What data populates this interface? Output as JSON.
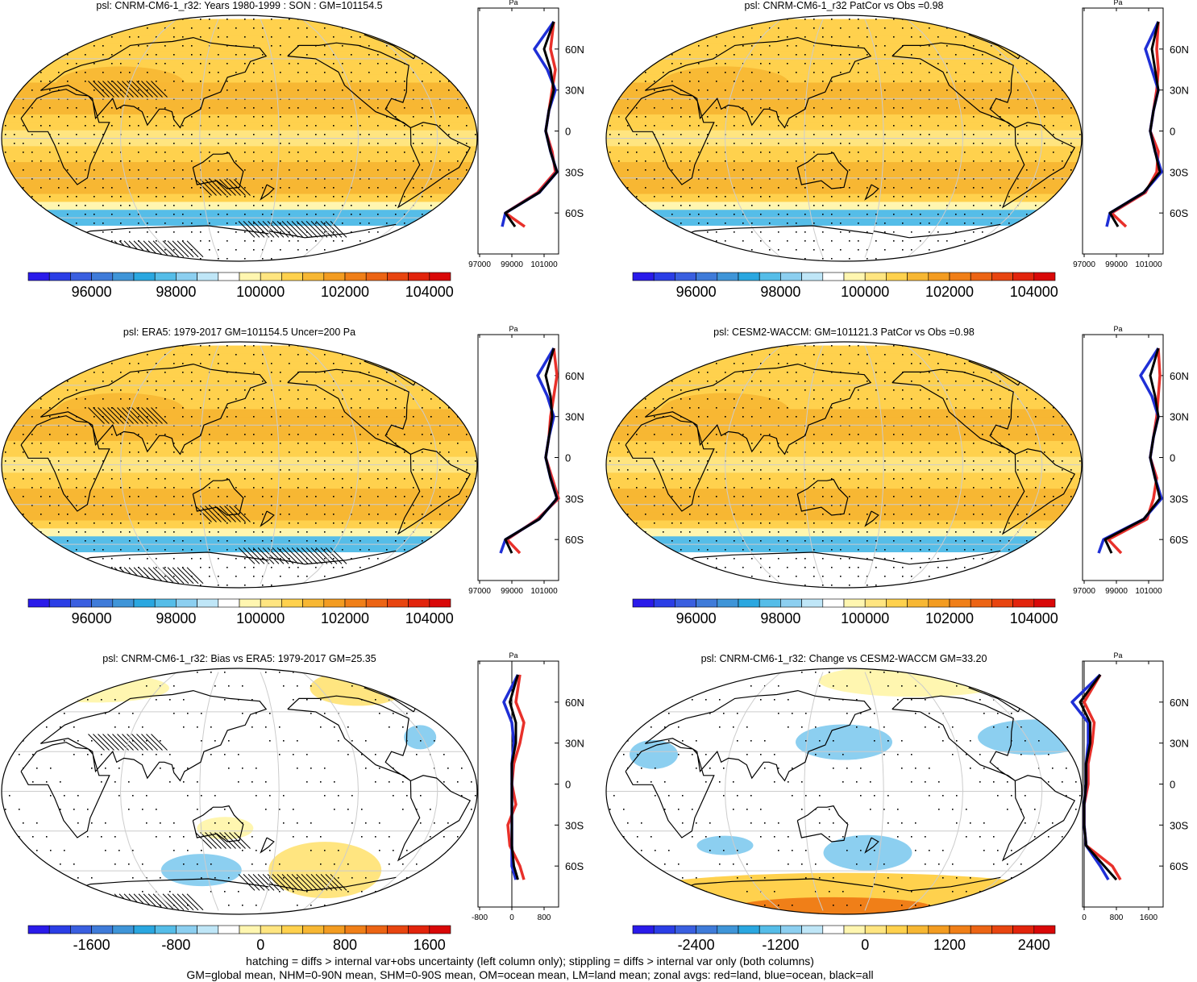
{
  "colors": {
    "scale": [
      "#2a1bea",
      "#2b3ee6",
      "#3a5fe0",
      "#3f7bd9",
      "#3f95d8",
      "#2aa7e0",
      "#55bde8",
      "#8ccff0",
      "#bfe6f7",
      "#ffffff",
      "#fff6b0",
      "#ffe580",
      "#ffd14d",
      "#f7b733",
      "#f39c21",
      "#f07f18",
      "#ec6414",
      "#e84510",
      "#e2240c",
      "#d90808"
    ],
    "land": "#e8302a",
    "ocean": "#1f2fd6",
    "all": "#000000",
    "grid": "#cccccc"
  },
  "panels": [
    {
      "id": "model-mean",
      "title": "psl: CNRM-CM6-1_r32: Years 1980-1999 : SON : GM=101154.5",
      "field": "abs",
      "stipple": "heavy",
      "hatch": true,
      "colorbar_ticks": [
        "96000",
        "98000",
        "100000",
        "102000",
        "104000"
      ],
      "zonal_xticks": [
        "97000",
        "99000",
        "101000"
      ],
      "zonal_unit": "Pa",
      "zonal_ylabels": [
        "60N",
        "30N",
        "0",
        "30S",
        "60S"
      ]
    },
    {
      "id": "model-patcor",
      "title": "psl: CNRM-CM6-1_r32 PatCor vs Obs =0.98",
      "field": "abs",
      "stipple": "heavy",
      "hatch": false,
      "colorbar_ticks": [
        "96000",
        "98000",
        "100000",
        "102000",
        "104000"
      ],
      "zonal_xticks": [
        "97000",
        "99000",
        "101000"
      ],
      "zonal_unit": "Pa",
      "zonal_ylabels": [
        "60N",
        "30N",
        "0",
        "30S",
        "60S"
      ]
    },
    {
      "id": "obs-era5",
      "title": "psl: ERA5: 1979-2017 GM=101154.5 Uncer=200 Pa",
      "field": "abs",
      "stipple": "heavy",
      "hatch": true,
      "colorbar_ticks": [
        "96000",
        "98000",
        "100000",
        "102000",
        "104000"
      ],
      "zonal_xticks": [
        "97000",
        "99000",
        "101000"
      ],
      "zonal_unit": "Pa",
      "zonal_ylabels": [
        "60N",
        "30N",
        "0",
        "30S",
        "60S"
      ]
    },
    {
      "id": "cesm2-waccm",
      "title": "psl: CESM2-WACCM: GM=101121.3 PatCor vs Obs =0.98",
      "field": "abs",
      "stipple": "heavy",
      "hatch": false,
      "colorbar_ticks": [
        "96000",
        "98000",
        "100000",
        "102000",
        "104000"
      ],
      "zonal_xticks": [
        "97000",
        "99000",
        "101000"
      ],
      "zonal_unit": "Pa",
      "zonal_ylabels": [
        "60N",
        "30N",
        "0",
        "30S",
        "60S"
      ]
    },
    {
      "id": "bias-vs-era5",
      "title": "psl: CNRM-CM6-1_r32: Bias vs ERA5: 1979-2017  GM=25.35",
      "field": "bias",
      "stipple": "light",
      "hatch": true,
      "colorbar_ticks": [
        "-1600",
        "-800",
        "0",
        "800",
        "1600"
      ],
      "zonal_xticks": [
        "-800",
        "0",
        "800"
      ],
      "zonal_unit": "Pa",
      "zonal_ylabels": [
        "60N",
        "30N",
        "0",
        "30S",
        "60S"
      ]
    },
    {
      "id": "change-vs-cesm2",
      "title": "psl: CNRM-CM6-1_r32: Change vs CESM2-WACCM GM=33.20",
      "field": "change",
      "stipple": "light",
      "hatch": false,
      "colorbar_ticks": [
        "-2400",
        "-1200",
        "0",
        "1200",
        "2400"
      ],
      "zonal_xticks": [
        "0",
        "800",
        "1600"
      ],
      "zonal_unit": "Pa",
      "zonal_ylabels": [
        "60N",
        "30N",
        "0",
        "30S",
        "60S"
      ]
    }
  ],
  "footer": {
    "line1": "hatching = diffs > internal var+obs uncertainty (left column only); stippling = diffs > internal var only (both columns)",
    "line2": "GM=global mean, NHM=0-90N mean, SHM=0-90S mean, OM=ocean mean, LM=land mean; zonal avgs: red=land, blue=ocean, black=all"
  },
  "chart_data": [
    {
      "type": "heatmap",
      "title": "psl: CNRM-CM6-1_r32: Years 1980-1999 : SON : GM=101154.5",
      "colorbar_ticks": [
        96000,
        98000,
        100000,
        102000,
        104000
      ],
      "zonal_mean": {
        "type": "line",
        "unit": "Pa",
        "y_ticks": [
          "60N",
          "30N",
          "0",
          "30S",
          "60S"
        ],
        "x_ticks": [
          97000,
          99000,
          101000
        ],
        "latitude": [
          80,
          60,
          45,
          30,
          15,
          0,
          -15,
          -30,
          -45,
          -60,
          -70
        ],
        "series": [
          {
            "name": "land",
            "values": [
              101600,
              101400,
              101700,
              101500,
              101300,
              101100,
              101500,
              101700,
              100600,
              98600,
              99800
            ]
          },
          {
            "name": "ocean",
            "values": [
              101600,
              100400,
              101200,
              101700,
              101300,
              101100,
              101400,
              101800,
              100700,
              98600,
              98400
            ]
          },
          {
            "name": "all",
            "values": [
              101600,
              101000,
              101400,
              101600,
              101300,
              101100,
              101400,
              101800,
              100700,
              98600,
              99200
            ]
          }
        ]
      }
    },
    {
      "type": "heatmap",
      "title": "psl: CNRM-CM6-1_r32 PatCor vs Obs =0.98",
      "colorbar_ticks": [
        96000,
        98000,
        100000,
        102000,
        104000
      ],
      "zonal_mean": {
        "type": "line",
        "unit": "Pa",
        "y_ticks": [
          "60N",
          "30N",
          "0",
          "30S",
          "60S"
        ],
        "x_ticks": [
          97000,
          99000,
          101000
        ],
        "latitude": [
          80,
          60,
          45,
          30,
          15,
          0,
          -15,
          -30,
          -45,
          -60,
          -70
        ],
        "series": [
          {
            "name": "land",
            "values": [
              101600,
              101500,
              101600,
              101500,
              101300,
              101100,
              101600,
              101500,
              100800,
              98700,
              99600
            ]
          },
          {
            "name": "ocean",
            "values": [
              101600,
              100800,
              101200,
              101600,
              101300,
              101100,
              101400,
              101800,
              100700,
              98600,
              98400
            ]
          },
          {
            "name": "all",
            "values": [
              101600,
              101200,
              101400,
              101600,
              101300,
              101100,
              101400,
              101700,
              100700,
              98600,
              99100
            ]
          }
        ]
      }
    },
    {
      "type": "heatmap",
      "title": "psl: ERA5: 1979-2017 GM=101154.5 Uncer=200 Pa",
      "colorbar_ticks": [
        96000,
        98000,
        100000,
        102000,
        104000
      ],
      "zonal_mean": {
        "type": "line",
        "unit": "Pa",
        "y_ticks": [
          "60N",
          "30N",
          "0",
          "30S",
          "60S"
        ],
        "x_ticks": [
          97000,
          99000,
          101000
        ],
        "latitude": [
          80,
          60,
          45,
          30,
          15,
          0,
          -15,
          -30,
          -45,
          -60,
          -70
        ],
        "series": [
          {
            "name": "land",
            "values": [
              101600,
              101800,
              101600,
              101400,
              101300,
              101100,
              101500,
              101900,
              100600,
              98700,
              99500
            ]
          },
          {
            "name": "ocean",
            "values": [
              101600,
              100600,
              101200,
              101600,
              101300,
              101100,
              101400,
              101800,
              100700,
              98600,
              98300
            ]
          },
          {
            "name": "all",
            "values": [
              101600,
              101100,
              101400,
              101500,
              101300,
              101100,
              101400,
              101800,
              100700,
              98600,
              99000
            ]
          }
        ]
      }
    },
    {
      "type": "heatmap",
      "title": "psl: CESM2-WACCM: GM=101121.3 PatCor vs Obs =0.98",
      "colorbar_ticks": [
        96000,
        98000,
        100000,
        102000,
        104000
      ],
      "zonal_mean": {
        "type": "line",
        "unit": "Pa",
        "y_ticks": [
          "60N",
          "30N",
          "0",
          "30S",
          "60S"
        ],
        "x_ticks": [
          97000,
          99000,
          101000
        ],
        "latitude": [
          80,
          60,
          45,
          30,
          15,
          0,
          -15,
          -30,
          -45,
          -60,
          -70
        ],
        "series": [
          {
            "name": "land",
            "values": [
              101600,
              101700,
              101600,
              101500,
              101300,
              101100,
              101500,
              101300,
              100900,
              98500,
              99300
            ]
          },
          {
            "name": "ocean",
            "values": [
              101600,
              100500,
              101200,
              101600,
              101300,
              101100,
              101400,
              101800,
              100700,
              98200,
              97900
            ]
          },
          {
            "name": "all",
            "values": [
              101600,
              101100,
              101400,
              101600,
              101300,
              101100,
              101400,
              101700,
              100700,
              98300,
              98700
            ]
          }
        ]
      }
    },
    {
      "type": "heatmap",
      "title": "psl: CNRM-CM6-1_r32: Bias vs ERA5: 1979-2017  GM=25.35",
      "colorbar_ticks": [
        -1600,
        -800,
        0,
        800,
        1600
      ],
      "zonal_mean": {
        "type": "line",
        "unit": "Pa",
        "y_ticks": [
          "60N",
          "30N",
          "0",
          "30S",
          "60S"
        ],
        "x_ticks": [
          -800,
          0,
          800
        ],
        "latitude": [
          80,
          60,
          45,
          30,
          15,
          0,
          -15,
          -30,
          -45,
          -60,
          -70
        ],
        "series": [
          {
            "name": "land",
            "values": [
              200,
              100,
              300,
              200,
              50,
              0,
              100,
              -100,
              -50,
              200,
              300
            ]
          },
          {
            "name": "ocean",
            "values": [
              150,
              -200,
              0,
              50,
              0,
              0,
              0,
              0,
              0,
              0,
              100
            ]
          },
          {
            "name": "all",
            "values": [
              150,
              -50,
              100,
              100,
              0,
              0,
              0,
              0,
              0,
              50,
              150
            ]
          }
        ]
      }
    },
    {
      "type": "heatmap",
      "title": "psl: CNRM-CM6-1_r32: Change vs CESM2-WACCM GM=33.20",
      "colorbar_ticks": [
        -2400,
        -1200,
        0,
        1200,
        2400
      ],
      "zonal_mean": {
        "type": "line",
        "unit": "Pa",
        "y_ticks": [
          "60N",
          "30N",
          "0",
          "30S",
          "60S"
        ],
        "x_ticks": [
          0,
          800,
          1600
        ],
        "latitude": [
          80,
          60,
          45,
          30,
          15,
          0,
          -15,
          -30,
          -45,
          -60,
          -70
        ],
        "series": [
          {
            "name": "land",
            "values": [
              400,
              0,
              250,
              200,
              100,
              100,
              0,
              0,
              50,
              700,
              900
            ]
          },
          {
            "name": "ocean",
            "values": [
              400,
              -300,
              100,
              100,
              50,
              50,
              0,
              0,
              50,
              400,
              600
            ]
          },
          {
            "name": "all",
            "values": [
              400,
              -100,
              150,
              150,
              50,
              50,
              0,
              0,
              50,
              500,
              800
            ]
          }
        ]
      }
    }
  ]
}
